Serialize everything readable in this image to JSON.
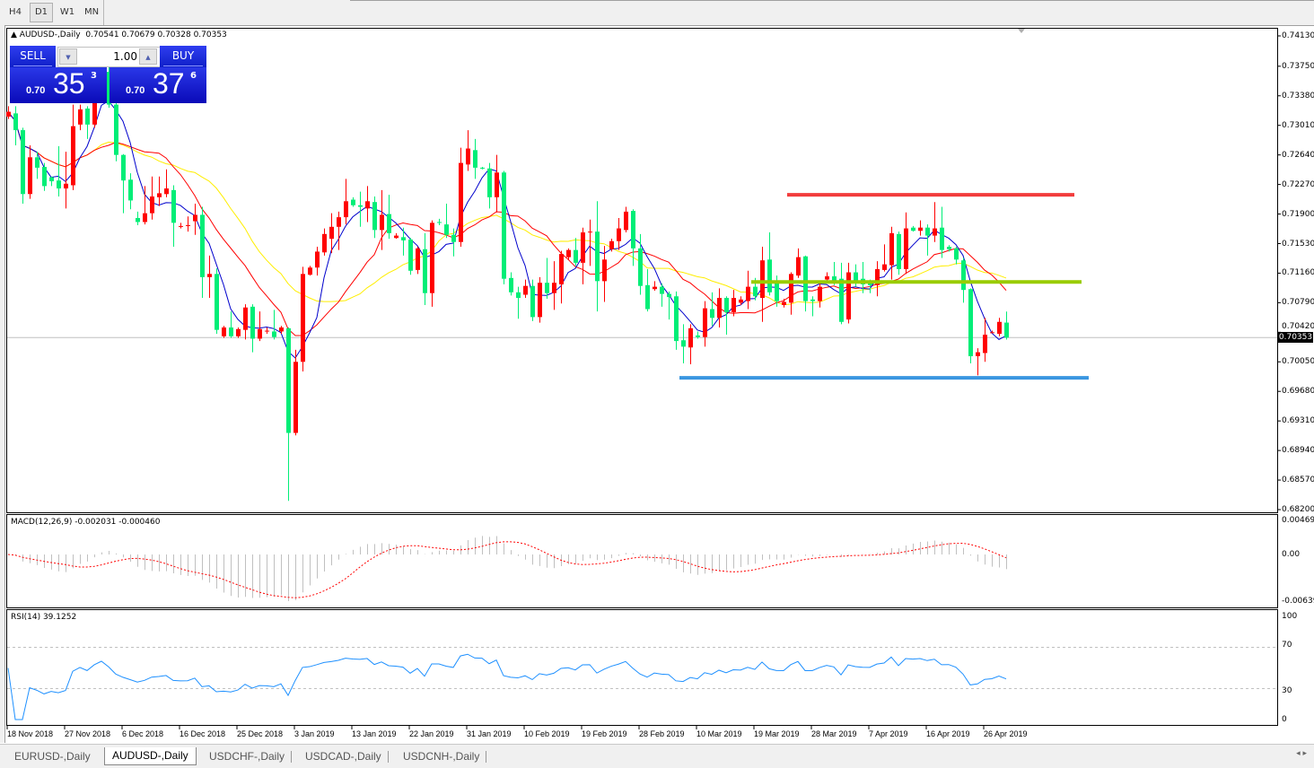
{
  "toolbar": {
    "timeframes": [
      {
        "label": "H4",
        "active": false
      },
      {
        "label": "D1",
        "active": true
      },
      {
        "label": "W1",
        "active": false
      },
      {
        "label": "MN",
        "active": false
      }
    ]
  },
  "chart": {
    "header": "AUDUSD-,Daily  0.70541 0.70679 0.70328 0.70353",
    "symbol": "AUDUSD-,Daily",
    "ohlc_text": "0.70541 0.70679 0.70328 0.70353",
    "current_price": "0.70353",
    "current_price_value": 0.70353,
    "price_axis": [
      "0.74130",
      "0.73750",
      "0.73380",
      "0.73010",
      "0.72640",
      "0.72270",
      "0.71900",
      "0.71530",
      "0.71160",
      "0.70790",
      "0.70420",
      "0.70050",
      "0.69680",
      "0.69310",
      "0.68940",
      "0.68570",
      "0.68200"
    ],
    "price_range": [
      0.682,
      0.7413
    ],
    "colors": {
      "bull_candle": "#ff0000",
      "bear_candle": "#00ee77",
      "ma_fast": "#0000cc",
      "ma_mid": "#ff0000",
      "ma_slow": "#ffee00"
    },
    "levels": [
      {
        "price": 0.7214,
        "color": "#f23c3c"
      },
      {
        "price": 0.7105,
        "color": "#99cc00"
      },
      {
        "price": 0.6985,
        "color": "#3a96e0"
      }
    ],
    "candles": [
      [
        0.7312,
        0.7325,
        0.7309,
        0.7318
      ],
      [
        0.7316,
        0.7325,
        0.7276,
        0.7295
      ],
      [
        0.7295,
        0.7298,
        0.7203,
        0.7215
      ],
      [
        0.7215,
        0.7276,
        0.7209,
        0.7261
      ],
      [
        0.7261,
        0.7268,
        0.7234,
        0.7248
      ],
      [
        0.7249,
        0.7254,
        0.7219,
        0.7225
      ],
      [
        0.7236,
        0.7237,
        0.7225,
        0.7231
      ],
      [
        0.7232,
        0.7275,
        0.7212,
        0.7222
      ],
      [
        0.7222,
        0.7268,
        0.7197,
        0.7228
      ],
      [
        0.7226,
        0.7327,
        0.722,
        0.73
      ],
      [
        0.7302,
        0.7327,
        0.7295,
        0.7321
      ],
      [
        0.7322,
        0.7325,
        0.7284,
        0.7302
      ],
      [
        0.7302,
        0.7351,
        0.7298,
        0.734
      ],
      [
        0.734,
        0.7393,
        0.7334,
        0.7368
      ],
      [
        0.7368,
        0.7379,
        0.7323,
        0.7327
      ],
      [
        0.7327,
        0.7332,
        0.7256,
        0.7264
      ],
      [
        0.7264,
        0.7265,
        0.7191,
        0.7232
      ],
      [
        0.7233,
        0.7241,
        0.7196,
        0.7207
      ],
      [
        0.7185,
        0.7193,
        0.7176,
        0.718
      ],
      [
        0.718,
        0.7225,
        0.7177,
        0.7191
      ],
      [
        0.7191,
        0.7237,
        0.7183,
        0.7212
      ],
      [
        0.7211,
        0.7237,
        0.72,
        0.7216
      ],
      [
        0.7215,
        0.7246,
        0.7211,
        0.7222
      ],
      [
        0.722,
        0.7226,
        0.7149,
        0.7179
      ],
      [
        0.7175,
        0.7179,
        0.7172,
        0.7175
      ],
      [
        0.7175,
        0.7187,
        0.7168,
        0.7176
      ],
      [
        0.7181,
        0.7203,
        0.7164,
        0.7189
      ],
      [
        0.7189,
        0.7199,
        0.7085,
        0.7111
      ],
      [
        0.7111,
        0.7138,
        0.7085,
        0.7115
      ],
      [
        0.7115,
        0.7122,
        0.704,
        0.7045
      ],
      [
        0.7037,
        0.705,
        0.7035,
        0.7048
      ],
      [
        0.7048,
        0.7068,
        0.7035,
        0.7037
      ],
      [
        0.7037,
        0.7048,
        0.7035,
        0.7046
      ],
      [
        0.7045,
        0.7077,
        0.7033,
        0.7073
      ],
      [
        0.7074,
        0.7077,
        0.7017,
        0.7034
      ],
      [
        0.7034,
        0.7068,
        0.7031,
        0.7046
      ],
      [
        0.7044,
        0.7048,
        0.704,
        0.7044
      ],
      [
        0.7043,
        0.707,
        0.7033,
        0.7036
      ],
      [
        0.7043,
        0.705,
        0.704,
        0.7048
      ],
      [
        0.7047,
        0.7048,
        0.6831,
        0.6916
      ],
      [
        0.6916,
        0.702,
        0.6913,
        0.7005
      ],
      [
        0.7005,
        0.7124,
        0.6993,
        0.7115
      ],
      [
        0.7114,
        0.7125,
        0.7113,
        0.7123
      ],
      [
        0.7123,
        0.7149,
        0.7113,
        0.7143
      ],
      [
        0.7142,
        0.7172,
        0.7138,
        0.7165
      ],
      [
        0.7159,
        0.7191,
        0.7141,
        0.7174
      ],
      [
        0.7174,
        0.7193,
        0.7145,
        0.7186
      ],
      [
        0.7186,
        0.7234,
        0.7177,
        0.7206
      ],
      [
        0.7208,
        0.7211,
        0.7199,
        0.7201
      ],
      [
        0.7201,
        0.7218,
        0.7174,
        0.7199
      ],
      [
        0.7197,
        0.7225,
        0.718,
        0.7206
      ],
      [
        0.7205,
        0.7212,
        0.716,
        0.717
      ],
      [
        0.717,
        0.722,
        0.7145,
        0.7189
      ],
      [
        0.719,
        0.7214,
        0.7159,
        0.7166
      ],
      [
        0.716,
        0.7166,
        0.7159,
        0.7163
      ],
      [
        0.7161,
        0.7173,
        0.7138,
        0.7157
      ],
      [
        0.7158,
        0.716,
        0.7114,
        0.7119
      ],
      [
        0.712,
        0.7149,
        0.7115,
        0.7147
      ],
      [
        0.7146,
        0.7166,
        0.7076,
        0.7091
      ],
      [
        0.7091,
        0.7182,
        0.7074,
        0.7179
      ],
      [
        0.718,
        0.7184,
        0.7176,
        0.7179
      ],
      [
        0.7177,
        0.7203,
        0.716,
        0.7164
      ],
      [
        0.7164,
        0.7172,
        0.7137,
        0.7155
      ],
      [
        0.7155,
        0.7273,
        0.7149,
        0.7254
      ],
      [
        0.7252,
        0.7295,
        0.7244,
        0.7272
      ],
      [
        0.727,
        0.7284,
        0.7234,
        0.7248
      ],
      [
        0.7248,
        0.7249,
        0.7246,
        0.7247
      ],
      [
        0.7247,
        0.7254,
        0.7197,
        0.7211
      ],
      [
        0.7211,
        0.7264,
        0.7192,
        0.7242
      ],
      [
        0.7242,
        0.7244,
        0.7102,
        0.7109
      ],
      [
        0.711,
        0.7117,
        0.7088,
        0.7092
      ],
      [
        0.7092,
        0.7099,
        0.7059,
        0.7085
      ],
      [
        0.7089,
        0.7108,
        0.7085,
        0.71
      ],
      [
        0.71,
        0.7108,
        0.7056,
        0.7061
      ],
      [
        0.7061,
        0.7111,
        0.7054,
        0.7104
      ],
      [
        0.7104,
        0.7135,
        0.7084,
        0.7091
      ],
      [
        0.7091,
        0.7131,
        0.707,
        0.7104
      ],
      [
        0.7102,
        0.7144,
        0.7078,
        0.714
      ],
      [
        0.7136,
        0.7147,
        0.7133,
        0.7145
      ],
      [
        0.7145,
        0.716,
        0.7125,
        0.7129
      ],
      [
        0.7129,
        0.7173,
        0.7102,
        0.7167
      ],
      [
        0.7168,
        0.7183,
        0.7125,
        0.7168
      ],
      [
        0.7168,
        0.7206,
        0.7068,
        0.7106
      ],
      [
        0.7106,
        0.715,
        0.708,
        0.7133
      ],
      [
        0.7146,
        0.7159,
        0.7143,
        0.7156
      ],
      [
        0.7156,
        0.7185,
        0.7145,
        0.7172
      ],
      [
        0.717,
        0.7199,
        0.7167,
        0.7193
      ],
      [
        0.7194,
        0.7196,
        0.7125,
        0.7147
      ],
      [
        0.7147,
        0.7165,
        0.7089,
        0.71
      ],
      [
        0.7101,
        0.7121,
        0.7068,
        0.7071
      ],
      [
        0.7096,
        0.7106,
        0.7094,
        0.7099
      ],
      [
        0.7099,
        0.7103,
        0.7074,
        0.709
      ],
      [
        0.709,
        0.7093,
        0.7058,
        0.7086
      ],
      [
        0.7087,
        0.7093,
        0.702,
        0.7031
      ],
      [
        0.7032,
        0.7052,
        0.7003,
        0.7024
      ],
      [
        0.7023,
        0.7052,
        0.7002,
        0.7047
      ],
      [
        0.7038,
        0.7043,
        0.7034,
        0.7036
      ],
      [
        0.7036,
        0.7081,
        0.7024,
        0.7072
      ],
      [
        0.7071,
        0.7092,
        0.705,
        0.706
      ],
      [
        0.706,
        0.7097,
        0.7048,
        0.7085
      ],
      [
        0.7085,
        0.7087,
        0.7039,
        0.7067
      ],
      [
        0.7067,
        0.7095,
        0.7062,
        0.7085
      ],
      [
        0.7079,
        0.7087,
        0.7076,
        0.7083
      ],
      [
        0.7081,
        0.7119,
        0.7071,
        0.7099
      ],
      [
        0.7099,
        0.711,
        0.7082,
        0.7087
      ],
      [
        0.7085,
        0.7149,
        0.7055,
        0.7132
      ],
      [
        0.7133,
        0.7167,
        0.7088,
        0.7092
      ],
      [
        0.7105,
        0.7113,
        0.7074,
        0.7081
      ],
      [
        0.7076,
        0.7084,
        0.7073,
        0.708
      ],
      [
        0.7079,
        0.7117,
        0.7064,
        0.7115
      ],
      [
        0.7113,
        0.7147,
        0.711,
        0.7136
      ],
      [
        0.7137,
        0.7138,
        0.7068,
        0.7081
      ],
      [
        0.7083,
        0.7087,
        0.7062,
        0.7081
      ],
      [
        0.7081,
        0.7104,
        0.7073,
        0.7099
      ],
      [
        0.7108,
        0.7117,
        0.7104,
        0.7112
      ],
      [
        0.7112,
        0.713,
        0.7101,
        0.7104
      ],
      [
        0.7109,
        0.7129,
        0.7052,
        0.7055
      ],
      [
        0.7058,
        0.7129,
        0.7053,
        0.7117
      ],
      [
        0.7117,
        0.7127,
        0.7099,
        0.7106
      ],
      [
        0.7109,
        0.713,
        0.7091,
        0.7102
      ],
      [
        0.7104,
        0.7108,
        0.7091,
        0.7101
      ],
      [
        0.7101,
        0.7131,
        0.7087,
        0.7121
      ],
      [
        0.712,
        0.7152,
        0.7118,
        0.7127
      ],
      [
        0.7126,
        0.7174,
        0.7108,
        0.7166
      ],
      [
        0.7165,
        0.7168,
        0.7114,
        0.7121
      ],
      [
        0.7121,
        0.7192,
        0.7115,
        0.7172
      ],
      [
        0.7173,
        0.7175,
        0.7168,
        0.7169
      ],
      [
        0.7169,
        0.7182,
        0.7163,
        0.7173
      ],
      [
        0.7173,
        0.7177,
        0.7138,
        0.7163
      ],
      [
        0.7163,
        0.7205,
        0.7155,
        0.7172
      ],
      [
        0.7173,
        0.7199,
        0.7135,
        0.7145
      ],
      [
        0.7149,
        0.7151,
        0.7143,
        0.7146
      ],
      [
        0.7147,
        0.7149,
        0.7127,
        0.7133
      ],
      [
        0.7132,
        0.7135,
        0.7079,
        0.7095
      ],
      [
        0.7096,
        0.7097,
        0.7003,
        0.7012
      ],
      [
        0.7012,
        0.7022,
        0.6988,
        0.7017
      ],
      [
        0.7016,
        0.706,
        0.7005,
        0.7039
      ],
      [
        0.7042,
        0.7044,
        0.7041,
        0.7042
      ],
      [
        0.704,
        0.706,
        0.7037,
        0.7055
      ],
      [
        0.70541,
        0.70679,
        0.70328,
        0.70353
      ]
    ],
    "dates": [
      "18 Nov 2018",
      "27 Nov 2018",
      "6 Dec 2018",
      "16 Dec 2018",
      "25 Dec 2018",
      "3 Jan 2019",
      "13 Jan 2019",
      "22 Jan 2019",
      "31 Jan 2019",
      "10 Feb 2019",
      "19 Feb 2019",
      "28 Feb 2019",
      "10 Mar 2019",
      "19 Mar 2019",
      "28 Mar 2019",
      "7 Apr 2019",
      "16 Apr 2019",
      "26 Apr 2019"
    ]
  },
  "trade_panel": {
    "sell_label": "SELL",
    "buy_label": "BUY",
    "lot_value": "1.00",
    "sell_price": {
      "prefix": "0.70",
      "big": "35",
      "sup": "3"
    },
    "buy_price": {
      "prefix": "0.70",
      "big": "37",
      "sup": "6"
    }
  },
  "macd": {
    "title": "MACD(12,26,9) -0.002031 -0.000460",
    "axis": [
      "0.004694",
      "0.00",
      "-0.00639"
    ],
    "histogram_color": "#c0c0c0",
    "signal_color": "#ff0000"
  },
  "rsi": {
    "title": "RSI(14) 39.1252",
    "axis": [
      "100",
      "70",
      "30",
      "0"
    ],
    "line_color": "#1e90ff"
  },
  "bottom_tabs": [
    {
      "label": "EURUSD-,Daily",
      "active": false
    },
    {
      "label": "AUDUSD-,Daily",
      "active": true
    },
    {
      "label": "USDCHF-,Daily",
      "active": false
    },
    {
      "label": "USDCAD-,Daily",
      "active": false
    },
    {
      "label": "USDCNH-,Daily",
      "active": false
    }
  ],
  "scroll_arrows": "◂ ▸"
}
